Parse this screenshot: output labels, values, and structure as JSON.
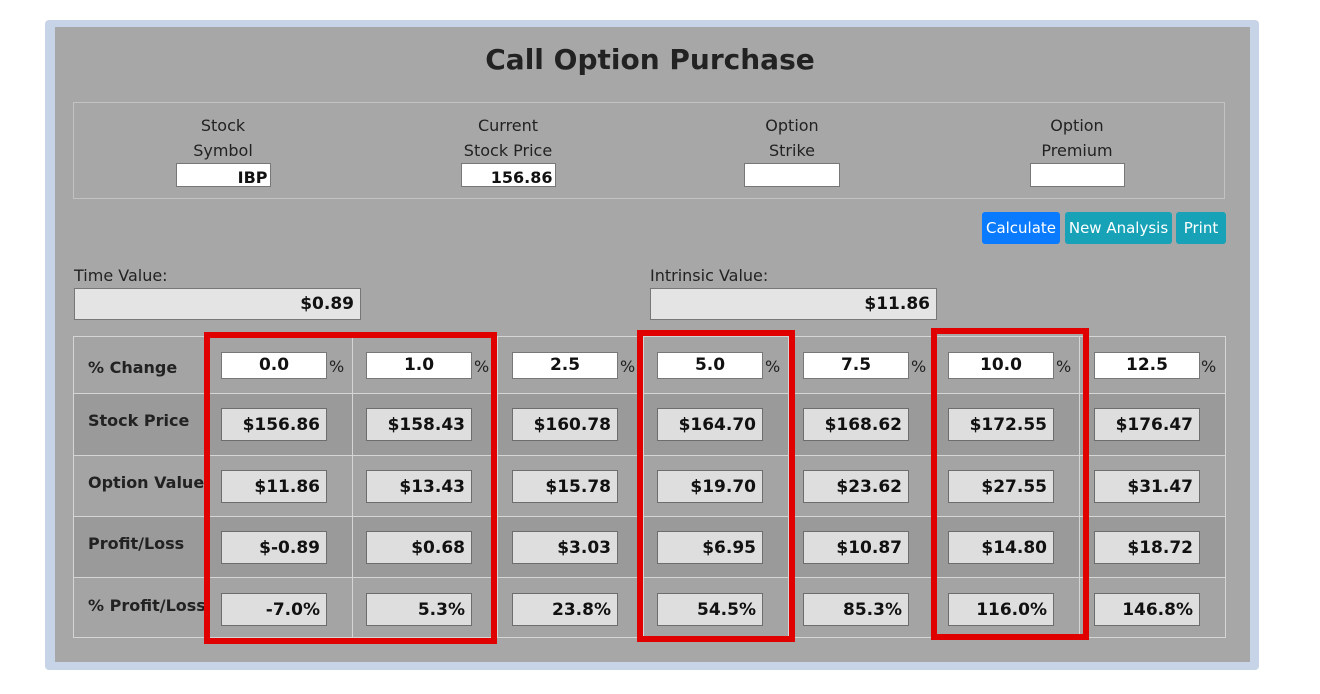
{
  "title": "Call Option Purchase",
  "fields": [
    {
      "line1": "Stock",
      "line2": "Symbol",
      "value": "IBP"
    },
    {
      "line1": "Current",
      "line2": "Stock Price",
      "value": "156.86"
    },
    {
      "line1": "Option",
      "line2": "Strike",
      "value": ""
    },
    {
      "line1": "Option",
      "line2": "Premium",
      "value": ""
    }
  ],
  "buttons": {
    "calculate": "Calculate",
    "new_analysis": "New Analysis",
    "print": "Print"
  },
  "time_value": {
    "label": "Time Value:",
    "value": "$0.89"
  },
  "intrinsic_value": {
    "label": "Intrinsic Value:",
    "value": "$11.86"
  },
  "table": {
    "pct_symbol": "%",
    "labels": {
      "change": "% Change",
      "stock": "Stock Price",
      "option": "Option Value",
      "pl": "Profit/Loss",
      "ppl": "% Profit/Loss"
    },
    "columns": [
      {
        "change": "0.0",
        "stock": "$156.86",
        "option": "$11.86",
        "pl": "$-0.89",
        "ppl": "-7.0%"
      },
      {
        "change": "1.0",
        "stock": "$158.43",
        "option": "$13.43",
        "pl": "$0.68",
        "ppl": "5.3%"
      },
      {
        "change": "2.5",
        "stock": "$160.78",
        "option": "$15.78",
        "pl": "$3.03",
        "ppl": "23.8%"
      },
      {
        "change": "5.0",
        "stock": "$164.70",
        "option": "$19.70",
        "pl": "$6.95",
        "ppl": "54.5%"
      },
      {
        "change": "7.5",
        "stock": "$168.62",
        "option": "$23.62",
        "pl": "$10.87",
        "ppl": "85.3%"
      },
      {
        "change": "10.0",
        "stock": "$172.55",
        "option": "$27.55",
        "pl": "$14.80",
        "ppl": "116.0%"
      },
      {
        "change": "12.5",
        "stock": "$176.47",
        "option": "$31.47",
        "pl": "$18.72",
        "ppl": "146.8%"
      }
    ]
  },
  "colors": {
    "primary_button": "#0a7bff",
    "info_button": "#17a2b8",
    "highlight": "#e00000",
    "panel": "#a7a7a7"
  }
}
